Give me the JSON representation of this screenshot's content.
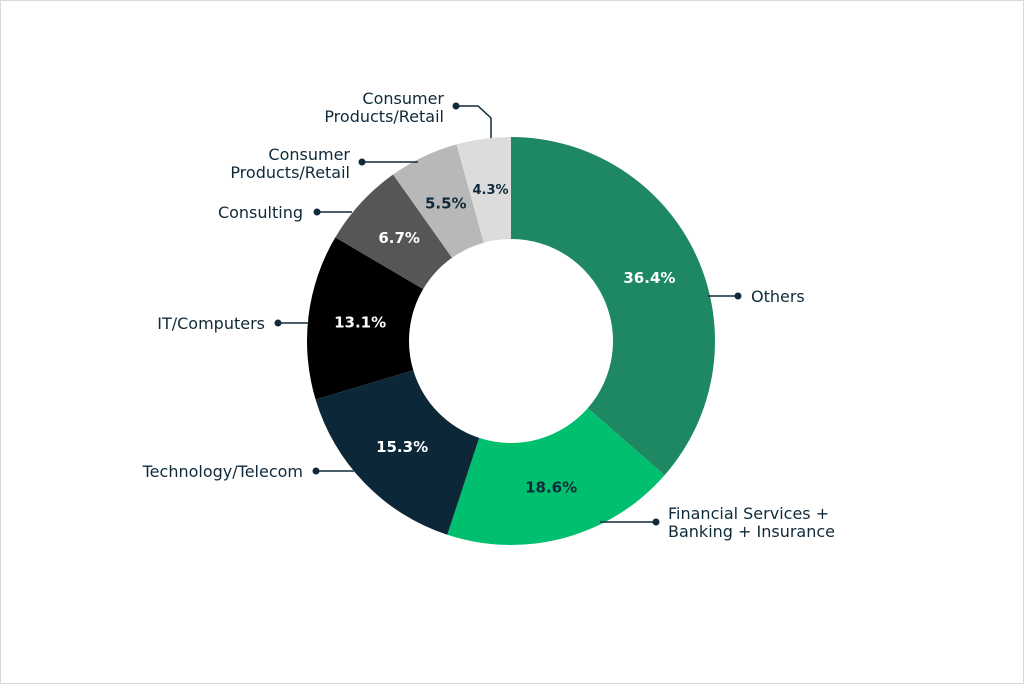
{
  "chart_data": {
    "type": "pie",
    "variant": "donut",
    "categories": [
      "Others",
      "Financial Services + Banking + Insurance",
      "Technology/Telecom",
      "IT/Computers",
      "Consulting",
      "Consumer Products/Retail",
      "Consumer Products/Retail"
    ],
    "values": [
      36.4,
      18.6,
      15.3,
      13.1,
      6.7,
      5.5,
      4.3
    ],
    "value_labels": [
      "36.4%",
      "18.6%",
      "15.3%",
      "13.1%",
      "6.7%",
      "5.5%",
      "4.3%"
    ],
    "colors": [
      "#1e8862",
      "#00bf6f",
      "#0c2838",
      "#000000",
      "#565656",
      "#b8b8b8",
      "#dcdcdc"
    ],
    "label_colors": [
      "#ffffff",
      "#0f2a3a",
      "#ffffff",
      "#ffffff",
      "#ffffff",
      "#0f2a3a",
      "#0f2a3a"
    ],
    "legend": "callout labels around chart",
    "title": "",
    "xlabel": "",
    "ylabel": ""
  }
}
